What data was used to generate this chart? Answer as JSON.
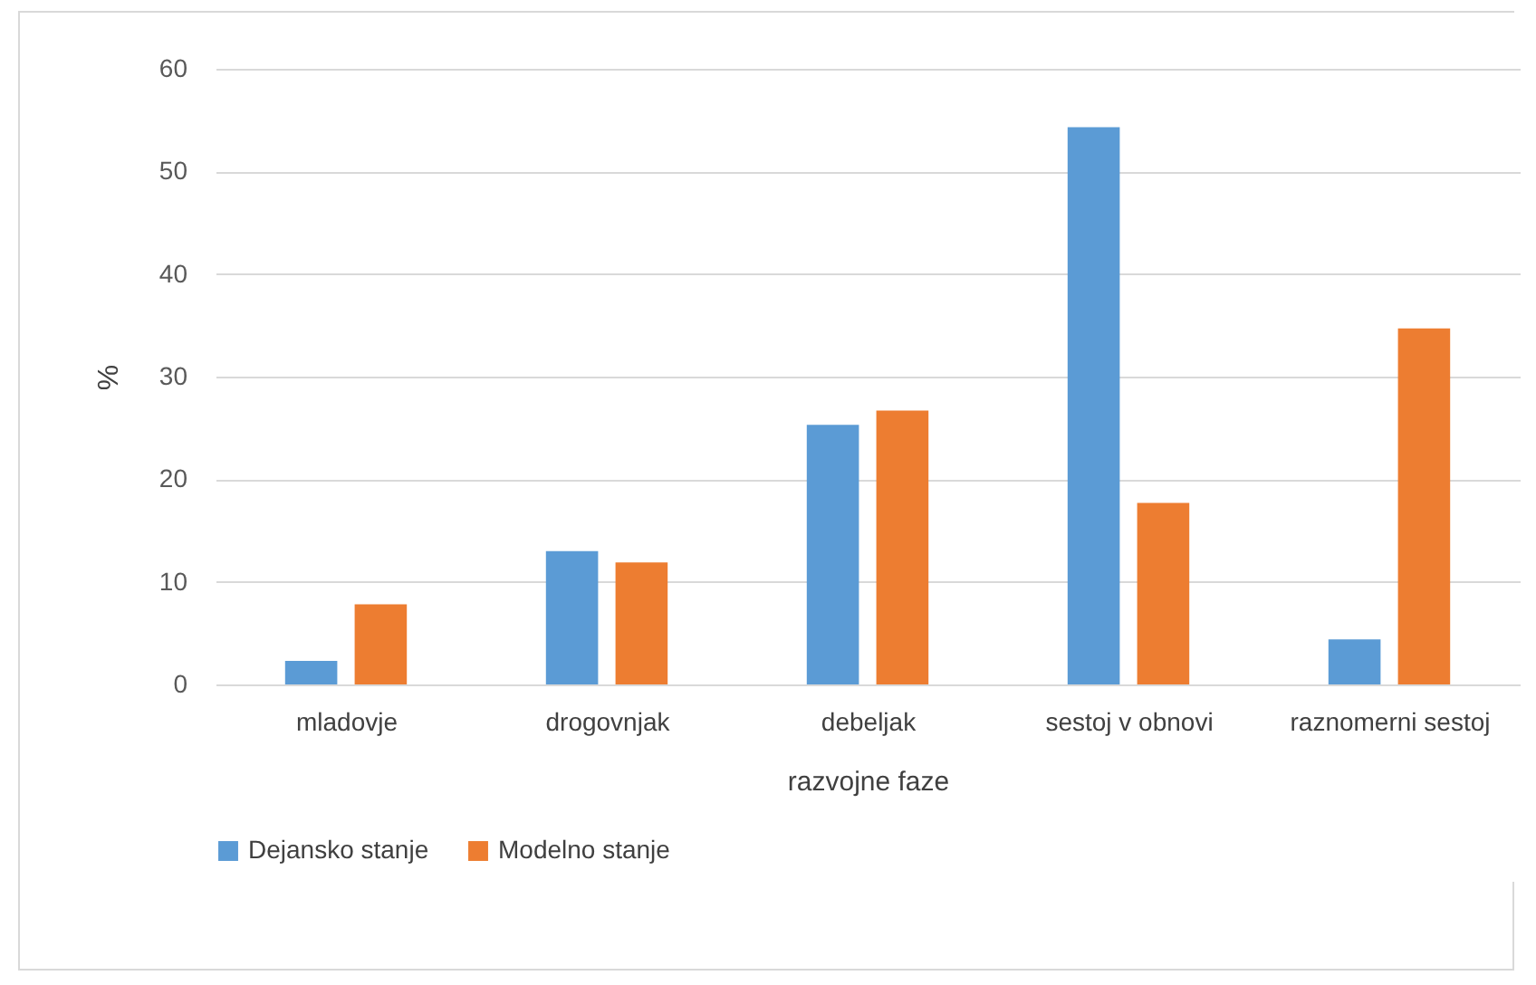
{
  "chart_data": {
    "type": "bar",
    "xlabel": "razvojne faze",
    "ylabel": "%",
    "categories": [
      "mladovje",
      "drogovnjak",
      "debeljak",
      "sestoj v obnovi",
      "raznomerni sestoj"
    ],
    "series": [
      {
        "name": "Dejansko stanje",
        "color": "#5b9bd5",
        "values": [
          2.3,
          13.0,
          25.3,
          54.3,
          4.4
        ]
      },
      {
        "name": "Modelno stanje",
        "color": "#ed7d31",
        "values": [
          7.8,
          11.9,
          26.7,
          17.7,
          34.7
        ]
      }
    ],
    "ylim": [
      0,
      60
    ],
    "yticks": [
      0,
      10,
      20,
      30,
      40,
      50,
      60
    ],
    "grid": "y",
    "legend": "bottom"
  }
}
